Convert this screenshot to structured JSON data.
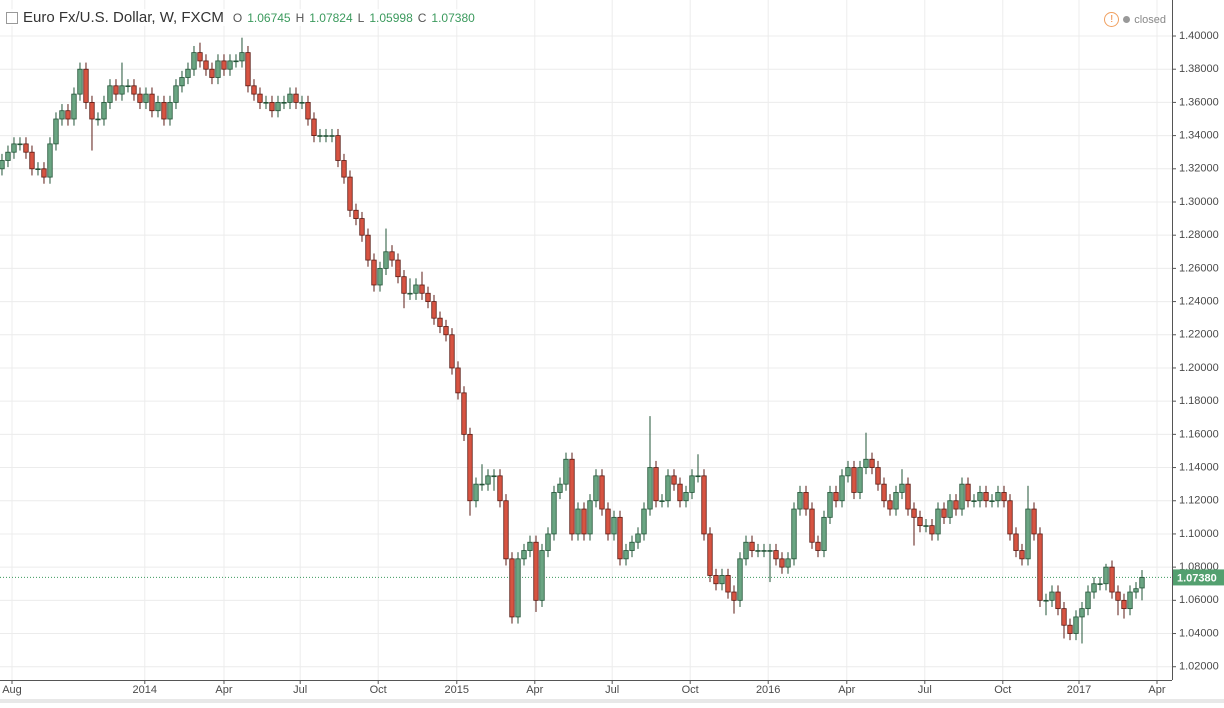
{
  "chart_data": {
    "type": "candlestick",
    "title": "Euro Fx/U.S. Dollar, W, FXCM",
    "status": "closed",
    "ohlc_legend": [
      {
        "key": "O",
        "label": "1.06745"
      },
      {
        "key": "H",
        "label": "1.07824"
      },
      {
        "key": "L",
        "label": "1.05998"
      },
      {
        "key": "C",
        "label": "1.07380"
      }
    ],
    "up_color": "#6ba583",
    "down_color": "#d75442",
    "grid": true,
    "last_price": {
      "value": 1.0738,
      "label": "1.07380"
    },
    "ylim": [
      1.012,
      1.4217
    ],
    "yticks": [
      {
        "value": 1.02,
        "label": "1.02000"
      },
      {
        "value": 1.04,
        "label": "1.04000"
      },
      {
        "value": 1.06,
        "label": "1.06000"
      },
      {
        "value": 1.08,
        "label": "1.08000"
      },
      {
        "value": 1.1,
        "label": "1.10000"
      },
      {
        "value": 1.12,
        "label": "1.12000"
      },
      {
        "value": 1.14,
        "label": "1.14000"
      },
      {
        "value": 1.16,
        "label": "1.16000"
      },
      {
        "value": 1.18,
        "label": "1.18000"
      },
      {
        "value": 1.2,
        "label": "1.20000"
      },
      {
        "value": 1.22,
        "label": "1.22000"
      },
      {
        "value": 1.24,
        "label": "1.24000"
      },
      {
        "value": 1.26,
        "label": "1.26000"
      },
      {
        "value": 1.28,
        "label": "1.28000"
      },
      {
        "value": 1.3,
        "label": "1.30000"
      },
      {
        "value": 1.32,
        "label": "1.32000"
      },
      {
        "value": 1.34,
        "label": "1.34000"
      },
      {
        "value": 1.36,
        "label": "1.36000"
      },
      {
        "value": 1.38,
        "label": "1.38000"
      },
      {
        "value": 1.4,
        "label": "1.40000"
      }
    ],
    "xlim": [
      -0.33,
      195
    ],
    "xticks": [
      {
        "value": 1.67,
        "label": "Aug"
      },
      {
        "value": 23.8,
        "label": "2014"
      },
      {
        "value": 37,
        "label": "Apr"
      },
      {
        "value": 49.7,
        "label": "Jul"
      },
      {
        "value": 62.7,
        "label": "Oct"
      },
      {
        "value": 75.8,
        "label": "2015"
      },
      {
        "value": 88.8,
        "label": "Apr"
      },
      {
        "value": 101.7,
        "label": "Jul"
      },
      {
        "value": 114.7,
        "label": "Oct"
      },
      {
        "value": 127.7,
        "label": "2016"
      },
      {
        "value": 140.8,
        "label": "Apr"
      },
      {
        "value": 153.8,
        "label": "Jul"
      },
      {
        "value": 166.8,
        "label": "Oct"
      },
      {
        "value": 179.5,
        "label": "2017"
      },
      {
        "value": 192.5,
        "label": "Apr"
      }
    ],
    "candles": [
      [
        1.32,
        1.329,
        1.316,
        1.325
      ],
      [
        1.325,
        1.334,
        1.321,
        1.33
      ],
      [
        1.33,
        1.339,
        1.326,
        1.335
      ],
      [
        1.335,
        1.339,
        1.331,
        1.335
      ],
      [
        1.335,
        1.339,
        1.326,
        1.33
      ],
      [
        1.33,
        1.334,
        1.316,
        1.32
      ],
      [
        1.32,
        1.324,
        1.316,
        1.32
      ],
      [
        1.32,
        1.324,
        1.311,
        1.315
      ],
      [
        1.315,
        1.339,
        1.311,
        1.335
      ],
      [
        1.335,
        1.354,
        1.331,
        1.35
      ],
      [
        1.35,
        1.359,
        1.346,
        1.355
      ],
      [
        1.355,
        1.359,
        1.346,
        1.35
      ],
      [
        1.35,
        1.369,
        1.346,
        1.365
      ],
      [
        1.365,
        1.384,
        1.361,
        1.38
      ],
      [
        1.38,
        1.384,
        1.356,
        1.36
      ],
      [
        1.36,
        1.364,
        1.331,
        1.35
      ],
      [
        1.35,
        1.354,
        1.346,
        1.35
      ],
      [
        1.35,
        1.364,
        1.346,
        1.36
      ],
      [
        1.36,
        1.374,
        1.356,
        1.37
      ],
      [
        1.37,
        1.374,
        1.361,
        1.365
      ],
      [
        1.365,
        1.384,
        1.361,
        1.37
      ],
      [
        1.37,
        1.374,
        1.366,
        1.37
      ],
      [
        1.37,
        1.374,
        1.361,
        1.365
      ],
      [
        1.365,
        1.369,
        1.356,
        1.36
      ],
      [
        1.36,
        1.369,
        1.356,
        1.365
      ],
      [
        1.365,
        1.369,
        1.351,
        1.355
      ],
      [
        1.355,
        1.364,
        1.351,
        1.36
      ],
      [
        1.36,
        1.364,
        1.346,
        1.35
      ],
      [
        1.35,
        1.364,
        1.346,
        1.36
      ],
      [
        1.36,
        1.374,
        1.356,
        1.37
      ],
      [
        1.37,
        1.379,
        1.366,
        1.375
      ],
      [
        1.375,
        1.384,
        1.371,
        1.38
      ],
      [
        1.38,
        1.394,
        1.376,
        1.39
      ],
      [
        1.39,
        1.396,
        1.381,
        1.385
      ],
      [
        1.385,
        1.389,
        1.376,
        1.38
      ],
      [
        1.38,
        1.384,
        1.371,
        1.375
      ],
      [
        1.375,
        1.389,
        1.371,
        1.385
      ],
      [
        1.385,
        1.389,
        1.376,
        1.38
      ],
      [
        1.38,
        1.389,
        1.376,
        1.385
      ],
      [
        1.385,
        1.389,
        1.381,
        1.385
      ],
      [
        1.385,
        1.399,
        1.381,
        1.39
      ],
      [
        1.39,
        1.394,
        1.366,
        1.37
      ],
      [
        1.37,
        1.374,
        1.361,
        1.365
      ],
      [
        1.365,
        1.369,
        1.356,
        1.36
      ],
      [
        1.36,
        1.364,
        1.356,
        1.36
      ],
      [
        1.36,
        1.364,
        1.351,
        1.355
      ],
      [
        1.355,
        1.364,
        1.351,
        1.36
      ],
      [
        1.36,
        1.364,
        1.356,
        1.36
      ],
      [
        1.36,
        1.369,
        1.356,
        1.365
      ],
      [
        1.365,
        1.369,
        1.356,
        1.36
      ],
      [
        1.36,
        1.364,
        1.356,
        1.36
      ],
      [
        1.36,
        1.364,
        1.346,
        1.35
      ],
      [
        1.35,
        1.354,
        1.336,
        1.34
      ],
      [
        1.34,
        1.344,
        1.336,
        1.34
      ],
      [
        1.34,
        1.344,
        1.336,
        1.34
      ],
      [
        1.34,
        1.344,
        1.336,
        1.34
      ],
      [
        1.34,
        1.344,
        1.321,
        1.325
      ],
      [
        1.325,
        1.329,
        1.311,
        1.315
      ],
      [
        1.315,
        1.319,
        1.291,
        1.295
      ],
      [
        1.295,
        1.299,
        1.286,
        1.29
      ],
      [
        1.29,
        1.294,
        1.276,
        1.28
      ],
      [
        1.28,
        1.284,
        1.261,
        1.265
      ],
      [
        1.265,
        1.269,
        1.246,
        1.25
      ],
      [
        1.25,
        1.264,
        1.246,
        1.26
      ],
      [
        1.26,
        1.284,
        1.256,
        1.27
      ],
      [
        1.27,
        1.274,
        1.261,
        1.265
      ],
      [
        1.265,
        1.269,
        1.251,
        1.255
      ],
      [
        1.255,
        1.259,
        1.236,
        1.245
      ],
      [
        1.245,
        1.254,
        1.241,
        1.245
      ],
      [
        1.245,
        1.254,
        1.241,
        1.25
      ],
      [
        1.25,
        1.258,
        1.241,
        1.245
      ],
      [
        1.245,
        1.249,
        1.236,
        1.24
      ],
      [
        1.24,
        1.244,
        1.226,
        1.23
      ],
      [
        1.23,
        1.234,
        1.221,
        1.225
      ],
      [
        1.225,
        1.229,
        1.216,
        1.22
      ],
      [
        1.22,
        1.224,
        1.196,
        1.2
      ],
      [
        1.2,
        1.204,
        1.181,
        1.185
      ],
      [
        1.185,
        1.189,
        1.156,
        1.16
      ],
      [
        1.16,
        1.164,
        1.111,
        1.12
      ],
      [
        1.12,
        1.134,
        1.116,
        1.13
      ],
      [
        1.13,
        1.142,
        1.126,
        1.13
      ],
      [
        1.13,
        1.139,
        1.126,
        1.135
      ],
      [
        1.135,
        1.139,
        1.126,
        1.135
      ],
      [
        1.135,
        1.139,
        1.116,
        1.12
      ],
      [
        1.12,
        1.124,
        1.081,
        1.085
      ],
      [
        1.085,
        1.089,
        1.046,
        1.05
      ],
      [
        1.05,
        1.089,
        1.046,
        1.085
      ],
      [
        1.085,
        1.094,
        1.081,
        1.09
      ],
      [
        1.09,
        1.099,
        1.086,
        1.095
      ],
      [
        1.095,
        1.099,
        1.053,
        1.06
      ],
      [
        1.06,
        1.094,
        1.056,
        1.09
      ],
      [
        1.09,
        1.104,
        1.086,
        1.1
      ],
      [
        1.1,
        1.129,
        1.096,
        1.125
      ],
      [
        1.125,
        1.134,
        1.121,
        1.13
      ],
      [
        1.13,
        1.149,
        1.126,
        1.145
      ],
      [
        1.145,
        1.149,
        1.096,
        1.1
      ],
      [
        1.1,
        1.119,
        1.096,
        1.115
      ],
      [
        1.115,
        1.119,
        1.096,
        1.1
      ],
      [
        1.1,
        1.124,
        1.096,
        1.12
      ],
      [
        1.12,
        1.139,
        1.116,
        1.135
      ],
      [
        1.135,
        1.139,
        1.111,
        1.115
      ],
      [
        1.115,
        1.119,
        1.096,
        1.1
      ],
      [
        1.1,
        1.114,
        1.096,
        1.11
      ],
      [
        1.11,
        1.114,
        1.081,
        1.085
      ],
      [
        1.085,
        1.094,
        1.081,
        1.09
      ],
      [
        1.09,
        1.099,
        1.086,
        1.095
      ],
      [
        1.095,
        1.104,
        1.091,
        1.1
      ],
      [
        1.1,
        1.119,
        1.096,
        1.115
      ],
      [
        1.115,
        1.171,
        1.111,
        1.14
      ],
      [
        1.14,
        1.144,
        1.116,
        1.12
      ],
      [
        1.12,
        1.124,
        1.116,
        1.12
      ],
      [
        1.12,
        1.139,
        1.116,
        1.135
      ],
      [
        1.135,
        1.139,
        1.126,
        1.13
      ],
      [
        1.13,
        1.134,
        1.116,
        1.12
      ],
      [
        1.12,
        1.129,
        1.116,
        1.125
      ],
      [
        1.125,
        1.139,
        1.121,
        1.135
      ],
      [
        1.135,
        1.148,
        1.131,
        1.135
      ],
      [
        1.135,
        1.139,
        1.096,
        1.1
      ],
      [
        1.1,
        1.104,
        1.071,
        1.075
      ],
      [
        1.075,
        1.079,
        1.066,
        1.07
      ],
      [
        1.07,
        1.079,
        1.066,
        1.075
      ],
      [
        1.075,
        1.079,
        1.061,
        1.065
      ],
      [
        1.065,
        1.069,
        1.052,
        1.06
      ],
      [
        1.06,
        1.089,
        1.056,
        1.085
      ],
      [
        1.085,
        1.099,
        1.081,
        1.095
      ],
      [
        1.095,
        1.099,
        1.086,
        1.09
      ],
      [
        1.09,
        1.094,
        1.086,
        1.09
      ],
      [
        1.09,
        1.094,
        1.086,
        1.09
      ],
      [
        1.09,
        1.094,
        1.071,
        1.09
      ],
      [
        1.09,
        1.094,
        1.081,
        1.085
      ],
      [
        1.085,
        1.089,
        1.076,
        1.08
      ],
      [
        1.08,
        1.089,
        1.076,
        1.085
      ],
      [
        1.085,
        1.119,
        1.081,
        1.115
      ],
      [
        1.115,
        1.129,
        1.111,
        1.125
      ],
      [
        1.125,
        1.129,
        1.111,
        1.115
      ],
      [
        1.115,
        1.119,
        1.091,
        1.095
      ],
      [
        1.095,
        1.099,
        1.086,
        1.09
      ],
      [
        1.09,
        1.114,
        1.086,
        1.11
      ],
      [
        1.11,
        1.129,
        1.106,
        1.125
      ],
      [
        1.125,
        1.129,
        1.116,
        1.12
      ],
      [
        1.12,
        1.139,
        1.116,
        1.135
      ],
      [
        1.135,
        1.144,
        1.131,
        1.14
      ],
      [
        1.14,
        1.144,
        1.121,
        1.125
      ],
      [
        1.125,
        1.144,
        1.121,
        1.14
      ],
      [
        1.14,
        1.161,
        1.136,
        1.145
      ],
      [
        1.145,
        1.149,
        1.136,
        1.14
      ],
      [
        1.14,
        1.144,
        1.126,
        1.13
      ],
      [
        1.13,
        1.134,
        1.116,
        1.12
      ],
      [
        1.12,
        1.124,
        1.111,
        1.115
      ],
      [
        1.115,
        1.129,
        1.111,
        1.125
      ],
      [
        1.125,
        1.139,
        1.121,
        1.13
      ],
      [
        1.13,
        1.134,
        1.111,
        1.115
      ],
      [
        1.115,
        1.119,
        1.093,
        1.11
      ],
      [
        1.11,
        1.114,
        1.101,
        1.105
      ],
      [
        1.105,
        1.109,
        1.101,
        1.105
      ],
      [
        1.105,
        1.109,
        1.096,
        1.1
      ],
      [
        1.1,
        1.119,
        1.096,
        1.115
      ],
      [
        1.115,
        1.119,
        1.106,
        1.11
      ],
      [
        1.11,
        1.124,
        1.106,
        1.12
      ],
      [
        1.12,
        1.124,
        1.111,
        1.115
      ],
      [
        1.115,
        1.134,
        1.111,
        1.13
      ],
      [
        1.13,
        1.134,
        1.116,
        1.12
      ],
      [
        1.12,
        1.124,
        1.116,
        1.12
      ],
      [
        1.12,
        1.129,
        1.116,
        1.125
      ],
      [
        1.125,
        1.129,
        1.116,
        1.12
      ],
      [
        1.12,
        1.124,
        1.116,
        1.12
      ],
      [
        1.12,
        1.129,
        1.116,
        1.125
      ],
      [
        1.125,
        1.129,
        1.116,
        1.12
      ],
      [
        1.12,
        1.124,
        1.096,
        1.1
      ],
      [
        1.1,
        1.104,
        1.086,
        1.09
      ],
      [
        1.09,
        1.094,
        1.081,
        1.085
      ],
      [
        1.085,
        1.129,
        1.081,
        1.115
      ],
      [
        1.115,
        1.119,
        1.096,
        1.1
      ],
      [
        1.1,
        1.104,
        1.056,
        1.06
      ],
      [
        1.06,
        1.064,
        1.051,
        1.06
      ],
      [
        1.06,
        1.069,
        1.056,
        1.065
      ],
      [
        1.065,
        1.069,
        1.051,
        1.055
      ],
      [
        1.055,
        1.059,
        1.037,
        1.045
      ],
      [
        1.045,
        1.049,
        1.036,
        1.04
      ],
      [
        1.04,
        1.054,
        1.036,
        1.05
      ],
      [
        1.05,
        1.059,
        1.034,
        1.055
      ],
      [
        1.055,
        1.069,
        1.051,
        1.065
      ],
      [
        1.065,
        1.074,
        1.061,
        1.07
      ],
      [
        1.07,
        1.074,
        1.066,
        1.07
      ],
      [
        1.07,
        1.082,
        1.066,
        1.08
      ],
      [
        1.08,
        1.084,
        1.061,
        1.065
      ],
      [
        1.065,
        1.069,
        1.051,
        1.06
      ],
      [
        1.06,
        1.064,
        1.049,
        1.055
      ],
      [
        1.055,
        1.069,
        1.051,
        1.065
      ],
      [
        1.065,
        1.071,
        1.061,
        1.067
      ],
      [
        1.06745,
        1.07824,
        1.05998,
        1.0738
      ]
    ]
  }
}
